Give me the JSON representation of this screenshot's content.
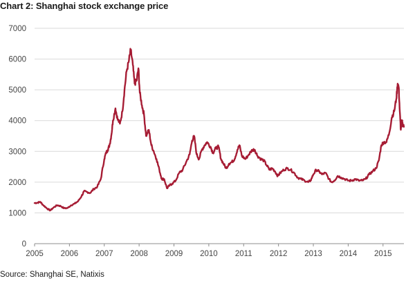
{
  "title": "Chart 2: Shanghai stock exchange price",
  "source": "Source: Shanghai SE, Natixis",
  "chart_data": {
    "type": "line",
    "title": "Chart 2: Shanghai stock exchange price",
    "xlabel": "",
    "ylabel": "",
    "xlim": [
      2005.0,
      2015.6
    ],
    "ylim": [
      0,
      7000
    ],
    "y_ticks": [
      0,
      1000,
      2000,
      3000,
      4000,
      5000,
      6000,
      7000
    ],
    "x_ticks": [
      "2005",
      "2006",
      "2007",
      "2008",
      "2009",
      "2010",
      "2011",
      "2012",
      "2013",
      "2014",
      "2015"
    ],
    "grid": "horizontal",
    "legend": "none",
    "colors": {
      "series": "#A61C34",
      "grid": "#d9d9d9",
      "axis": "#8c8c8c"
    },
    "series": [
      {
        "points": [
          [
            2005.0,
            1320
          ],
          [
            2005.08,
            1330
          ],
          [
            2005.16,
            1360
          ],
          [
            2005.25,
            1250
          ],
          [
            2005.35,
            1150
          ],
          [
            2005.45,
            1080
          ],
          [
            2005.55,
            1180
          ],
          [
            2005.65,
            1250
          ],
          [
            2005.75,
            1220
          ],
          [
            2005.85,
            1150
          ],
          [
            2005.95,
            1160
          ],
          [
            2006.05,
            1250
          ],
          [
            2006.15,
            1300
          ],
          [
            2006.25,
            1380
          ],
          [
            2006.35,
            1550
          ],
          [
            2006.42,
            1700
          ],
          [
            2006.5,
            1680
          ],
          [
            2006.6,
            1650
          ],
          [
            2006.7,
            1780
          ],
          [
            2006.8,
            1850
          ],
          [
            2006.9,
            2100
          ],
          [
            2007.0,
            2750
          ],
          [
            2007.05,
            2950
          ],
          [
            2007.1,
            3050
          ],
          [
            2007.15,
            3200
          ],
          [
            2007.2,
            3500
          ],
          [
            2007.25,
            4000
          ],
          [
            2007.32,
            4400
          ],
          [
            2007.38,
            4050
          ],
          [
            2007.45,
            3900
          ],
          [
            2007.52,
            4300
          ],
          [
            2007.58,
            5000
          ],
          [
            2007.64,
            5600
          ],
          [
            2007.7,
            5900
          ],
          [
            2007.76,
            6300
          ],
          [
            2007.82,
            5800
          ],
          [
            2007.87,
            5200
          ],
          [
            2007.93,
            5300
          ],
          [
            2007.98,
            5700
          ],
          [
            2008.02,
            4900
          ],
          [
            2008.08,
            4500
          ],
          [
            2008.14,
            4200
          ],
          [
            2008.2,
            3500
          ],
          [
            2008.28,
            3700
          ],
          [
            2008.35,
            3200
          ],
          [
            2008.42,
            3000
          ],
          [
            2008.5,
            2750
          ],
          [
            2008.58,
            2400
          ],
          [
            2008.65,
            2100
          ],
          [
            2008.72,
            2100
          ],
          [
            2008.8,
            1800
          ],
          [
            2008.88,
            1900
          ],
          [
            2008.95,
            1950
          ],
          [
            2009.05,
            2050
          ],
          [
            2009.15,
            2300
          ],
          [
            2009.25,
            2400
          ],
          [
            2009.35,
            2650
          ],
          [
            2009.45,
            2900
          ],
          [
            2009.52,
            3350
          ],
          [
            2009.58,
            3500
          ],
          [
            2009.65,
            2900
          ],
          [
            2009.72,
            2750
          ],
          [
            2009.8,
            3050
          ],
          [
            2009.88,
            3200
          ],
          [
            2009.95,
            3300
          ],
          [
            2010.05,
            3150
          ],
          [
            2010.12,
            2950
          ],
          [
            2010.2,
            3100
          ],
          [
            2010.28,
            3150
          ],
          [
            2010.35,
            2750
          ],
          [
            2010.42,
            2600
          ],
          [
            2010.5,
            2450
          ],
          [
            2010.58,
            2600
          ],
          [
            2010.66,
            2650
          ],
          [
            2010.74,
            2750
          ],
          [
            2010.82,
            3050
          ],
          [
            2010.88,
            3200
          ],
          [
            2010.95,
            2850
          ],
          [
            2011.05,
            2750
          ],
          [
            2011.15,
            2900
          ],
          [
            2011.25,
            3050
          ],
          [
            2011.32,
            3050
          ],
          [
            2011.4,
            2850
          ],
          [
            2011.5,
            2750
          ],
          [
            2011.58,
            2700
          ],
          [
            2011.66,
            2550
          ],
          [
            2011.74,
            2400
          ],
          [
            2011.82,
            2450
          ],
          [
            2011.9,
            2350
          ],
          [
            2011.98,
            2200
          ],
          [
            2012.05,
            2300
          ],
          [
            2012.15,
            2400
          ],
          [
            2012.25,
            2450
          ],
          [
            2012.35,
            2400
          ],
          [
            2012.45,
            2300
          ],
          [
            2012.55,
            2150
          ],
          [
            2012.65,
            2100
          ],
          [
            2012.75,
            2050
          ],
          [
            2012.85,
            2000
          ],
          [
            2012.92,
            2050
          ],
          [
            2013.0,
            2250
          ],
          [
            2013.08,
            2400
          ],
          [
            2013.16,
            2350
          ],
          [
            2013.25,
            2250
          ],
          [
            2013.35,
            2300
          ],
          [
            2013.45,
            2100
          ],
          [
            2013.52,
            2000
          ],
          [
            2013.6,
            2050
          ],
          [
            2013.7,
            2200
          ],
          [
            2013.8,
            2150
          ],
          [
            2013.9,
            2100
          ],
          [
            2014.0,
            2050
          ],
          [
            2014.1,
            2050
          ],
          [
            2014.2,
            2100
          ],
          [
            2014.3,
            2050
          ],
          [
            2014.4,
            2050
          ],
          [
            2014.5,
            2100
          ],
          [
            2014.6,
            2250
          ],
          [
            2014.7,
            2350
          ],
          [
            2014.8,
            2450
          ],
          [
            2014.88,
            2700
          ],
          [
            2014.95,
            3200
          ],
          [
            2015.02,
            3300
          ],
          [
            2015.1,
            3300
          ],
          [
            2015.18,
            3600
          ],
          [
            2015.25,
            4100
          ],
          [
            2015.32,
            4300
          ],
          [
            2015.38,
            4700
          ],
          [
            2015.42,
            5200
          ],
          [
            2015.45,
            5100
          ],
          [
            2015.48,
            4300
          ],
          [
            2015.51,
            3700
          ],
          [
            2015.54,
            4000
          ],
          [
            2015.57,
            3850
          ],
          [
            2015.6,
            3800
          ]
        ]
      }
    ]
  }
}
